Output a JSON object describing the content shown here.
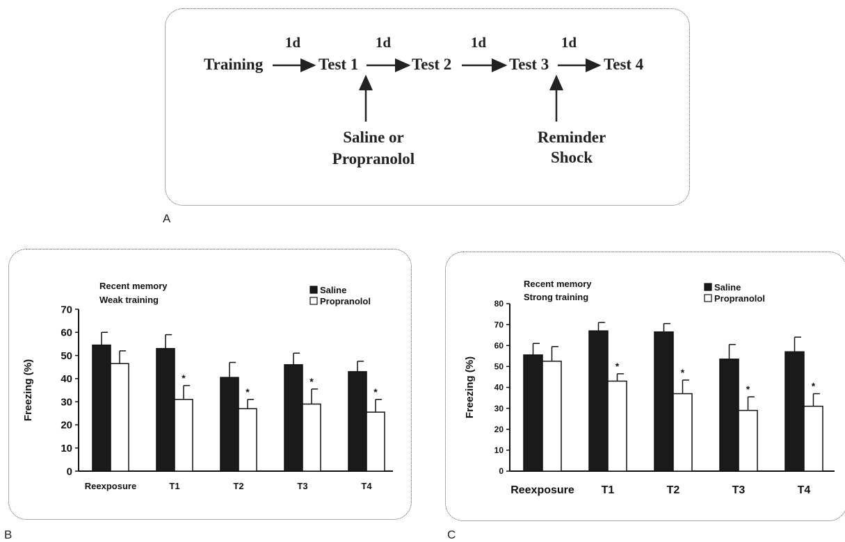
{
  "panel_a": {
    "letter": "A",
    "nodes": [
      "Training",
      "Test 1",
      "Test 2",
      "Test 3",
      "Test 4"
    ],
    "intervals": [
      "1d",
      "1d",
      "1d",
      "1d"
    ],
    "treatment": [
      "Saline or",
      "Propranolol"
    ],
    "reminder": [
      "Reminder",
      "Shock"
    ]
  },
  "panel_b": {
    "letter": "B"
  },
  "panel_c": {
    "letter": "C"
  },
  "chart_data": [
    {
      "type": "bar",
      "panel": "B",
      "annotation": [
        "Recent memory",
        "Weak training"
      ],
      "ylabel": "Freezing (%)",
      "xlabel": "",
      "categories": [
        "Reexposure",
        "T1",
        "T2",
        "T3",
        "T4"
      ],
      "ylim": [
        0,
        70
      ],
      "yticks": [
        0,
        10,
        20,
        30,
        40,
        50,
        60,
        70
      ],
      "legend": "top-right",
      "series": [
        {
          "name": "Saline",
          "color": "#1a1a1a",
          "values": [
            54.5,
            53,
            40.5,
            46,
            43
          ],
          "errors": [
            5.5,
            6,
            6.5,
            5,
            4.5
          ],
          "sig": [
            "",
            "",
            "",
            "",
            ""
          ]
        },
        {
          "name": "Propranolol",
          "color": "#ffffff",
          "values": [
            46.5,
            31,
            27,
            29,
            25.5
          ],
          "errors": [
            5.5,
            6,
            4,
            6.5,
            5.5
          ],
          "sig": [
            "",
            "*",
            "*",
            "*",
            "*"
          ]
        }
      ]
    },
    {
      "type": "bar",
      "panel": "C",
      "annotation": [
        "Recent memory",
        "Strong training"
      ],
      "ylabel": "Freezing (%)",
      "xlabel": "",
      "categories": [
        "Reexposure",
        "T1",
        "T2",
        "T3",
        "T4"
      ],
      "ylim": [
        0,
        80
      ],
      "yticks": [
        0,
        10,
        20,
        30,
        40,
        50,
        60,
        70,
        80
      ],
      "legend": "top-right",
      "series": [
        {
          "name": "Saline",
          "color": "#1a1a1a",
          "values": [
            55.5,
            67,
            66.5,
            53.5,
            57
          ],
          "errors": [
            5.5,
            4,
            4,
            7,
            7
          ],
          "sig": [
            "",
            "",
            "",
            "",
            ""
          ]
        },
        {
          "name": "Propranolol",
          "color": "#ffffff",
          "values": [
            52.5,
            43,
            37,
            29,
            31
          ],
          "errors": [
            7,
            3.5,
            6.5,
            6.5,
            6
          ],
          "sig": [
            "",
            "*",
            "*",
            "*",
            "*"
          ]
        }
      ]
    }
  ]
}
